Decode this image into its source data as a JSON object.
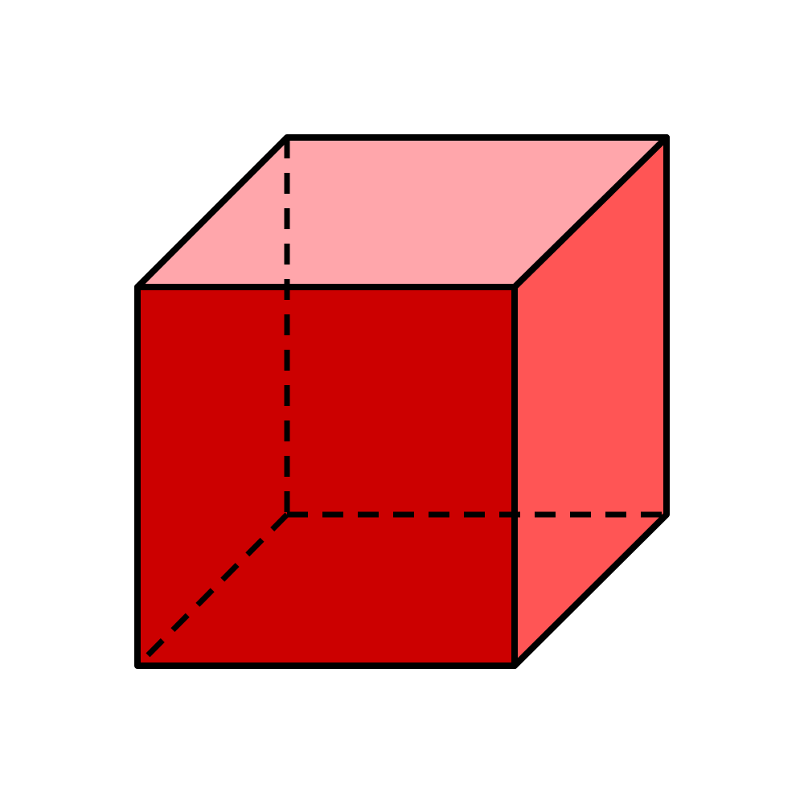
{
  "cube": {
    "faces": {
      "front": {
        "color": "#cc0000"
      },
      "top": {
        "color": "#ffa6ab"
      },
      "right": {
        "color": "#ff5555"
      }
    },
    "edge_color": "#000000",
    "hidden_edges_style": "dashed"
  }
}
